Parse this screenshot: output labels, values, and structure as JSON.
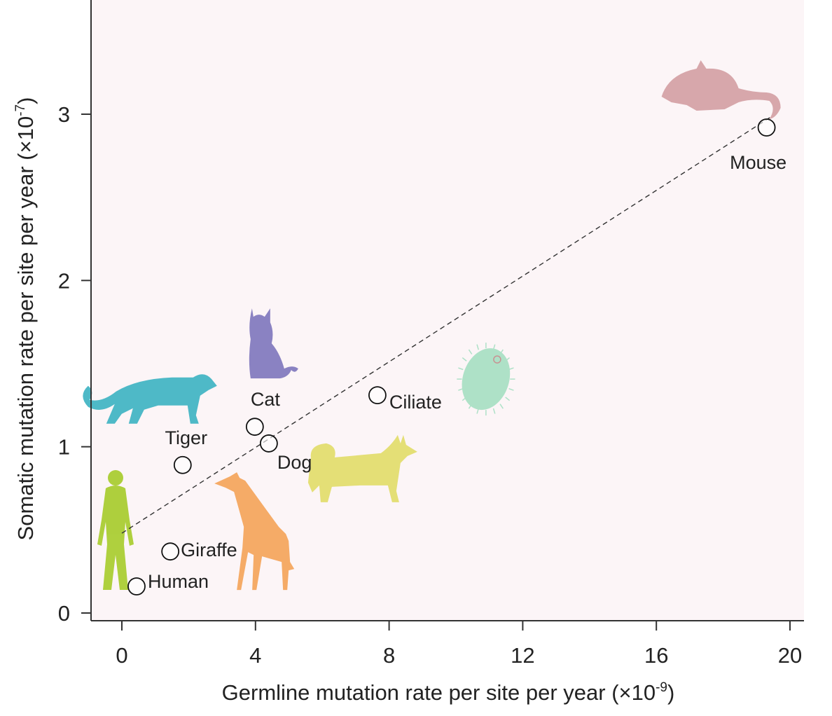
{
  "chart_data": {
    "type": "scatter",
    "title": "",
    "xlabel": "Germline mutation rate per site per year",
    "xlabel_multiplier": "(×10",
    "xlabel_exponent": "-9",
    "ylabel": "Somatic mutation rate per site per year",
    "ylabel_multiplier": "(×10",
    "ylabel_exponent": "-7",
    "xlim": [
      -0.9,
      20.4
    ],
    "ylim": [
      -0.05,
      3.68
    ],
    "xticks": [
      0,
      4,
      8,
      12,
      16,
      20
    ],
    "yticks": [
      0,
      1,
      2,
      3
    ],
    "grid": false,
    "legend": "none",
    "background_color": "#fcf5f7",
    "marker": "open-circle",
    "points": [
      {
        "name": "Human",
        "x": 0.44,
        "y": 0.16,
        "icon": "human-silhouette",
        "icon_color": "#a8cc2e"
      },
      {
        "name": "Giraffe",
        "x": 1.45,
        "y": 0.37,
        "icon": "giraffe-silhouette",
        "icon_color": "#f4a45a"
      },
      {
        "name": "Tiger",
        "x": 1.82,
        "y": 0.89,
        "icon": "tiger-silhouette",
        "icon_color": "#3fb3c2"
      },
      {
        "name": "Cat",
        "x": 3.98,
        "y": 1.12,
        "icon": "cat-silhouette",
        "icon_color": "#8077bd"
      },
      {
        "name": "Dog",
        "x": 4.4,
        "y": 1.02,
        "icon": "dog-silhouette",
        "icon_color": "#e2dc6a"
      },
      {
        "name": "Ciliate",
        "x": 7.65,
        "y": 1.31,
        "icon": "ciliate-drawing",
        "icon_color": "#a8e0c4"
      },
      {
        "name": "Mouse",
        "x": 19.3,
        "y": 2.92,
        "icon": "mouse-silhouette",
        "icon_color": "#d4a0a4"
      }
    ],
    "trendline": {
      "style": "dashed",
      "x0": 0.0,
      "y0": 0.48,
      "x1": 19.4,
      "y1": 2.98
    }
  }
}
